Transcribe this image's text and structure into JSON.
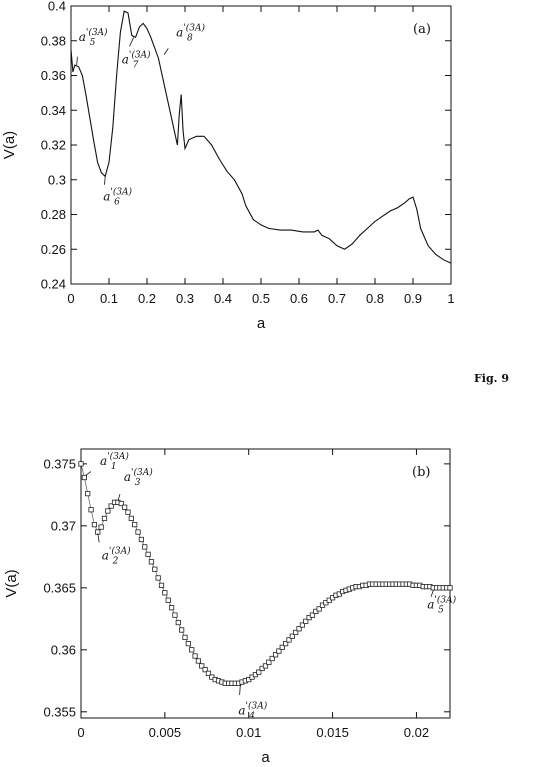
{
  "figure_label": "Fig. 9",
  "chart_data": [
    {
      "type": "line",
      "panel": "(a)",
      "xlabel": "a",
      "ylabel": "V(a)",
      "xlim": [
        0,
        1
      ],
      "ylim": [
        0.24,
        0.4
      ],
      "xticks": [
        0,
        0.1,
        0.2,
        0.3,
        0.4,
        0.5,
        0.6,
        0.7,
        0.8,
        0.9,
        1
      ],
      "xtick_labels": [
        "0",
        "0.1",
        "0.2",
        "0.3",
        "0.4",
        "0.5",
        "0.6",
        "0.7",
        "0.8",
        "0.9",
        "1"
      ],
      "yticks": [
        0.24,
        0.26,
        0.28,
        0.3,
        0.32,
        0.34,
        0.36,
        0.38,
        0.4
      ],
      "ytick_labels": [
        "0.24",
        "0.26",
        "0.28",
        "0.3",
        "0.32",
        "0.34",
        "0.36",
        "0.38",
        "0.4"
      ],
      "grid": false,
      "series": [
        {
          "x": [
            0.0,
            0.005,
            0.01,
            0.02,
            0.03,
            0.04,
            0.05,
            0.06,
            0.07,
            0.08,
            0.09,
            0.1,
            0.11,
            0.12,
            0.13,
            0.14,
            0.15,
            0.16,
            0.17,
            0.18,
            0.19,
            0.2,
            0.21,
            0.22,
            0.23,
            0.24,
            0.25,
            0.26,
            0.27,
            0.28,
            0.285,
            0.29,
            0.295,
            0.3,
            0.31,
            0.33,
            0.35,
            0.37,
            0.39,
            0.41,
            0.43,
            0.45,
            0.46,
            0.48,
            0.5,
            0.52,
            0.55,
            0.58,
            0.61,
            0.64,
            0.65,
            0.66,
            0.68,
            0.7,
            0.72,
            0.74,
            0.76,
            0.78,
            0.8,
            0.82,
            0.84,
            0.86,
            0.88,
            0.89,
            0.9,
            0.91,
            0.92,
            0.94,
            0.96,
            0.98,
            1.0
          ],
          "y": [
            0.375,
            0.362,
            0.366,
            0.365,
            0.36,
            0.348,
            0.335,
            0.322,
            0.31,
            0.304,
            0.302,
            0.31,
            0.33,
            0.36,
            0.385,
            0.397,
            0.396,
            0.383,
            0.382,
            0.388,
            0.39,
            0.387,
            0.382,
            0.376,
            0.37,
            0.36,
            0.35,
            0.34,
            0.33,
            0.32,
            0.338,
            0.349,
            0.328,
            0.318,
            0.323,
            0.325,
            0.325,
            0.32,
            0.312,
            0.305,
            0.3,
            0.292,
            0.285,
            0.277,
            0.274,
            0.272,
            0.271,
            0.271,
            0.27,
            0.27,
            0.271,
            0.268,
            0.266,
            0.262,
            0.26,
            0.263,
            0.268,
            0.272,
            0.276,
            0.279,
            0.282,
            0.284,
            0.287,
            0.289,
            0.29,
            0.283,
            0.272,
            0.262,
            0.257,
            0.254,
            0.252
          ]
        }
      ],
      "annotations": [
        {
          "base": "a",
          "sub": "5",
          "sup": "'(3A)",
          "x": 0.015,
          "y": 0.366
        },
        {
          "base": "a",
          "sub": "6",
          "sup": "'(3A)",
          "x": 0.09,
          "y": 0.302
        },
        {
          "base": "a",
          "sub": "7",
          "sup": "'(3A)",
          "x": 0.165,
          "y": 0.382
        },
        {
          "base": "a",
          "sub": "8",
          "sup": "'(3A)",
          "x": 0.245,
          "y": 0.372
        }
      ]
    },
    {
      "type": "scatter",
      "panel": "(b)",
      "xlabel": "a",
      "ylabel": "V(a)",
      "xlim": [
        0,
        0.022
      ],
      "ylim": [
        0.3545,
        0.3762
      ],
      "xticks": [
        0,
        0.005,
        0.01,
        0.015,
        0.02
      ],
      "xtick_labels": [
        "0",
        "0.005",
        "0.01",
        "0.015",
        "0.02"
      ],
      "yticks": [
        0.355,
        0.36,
        0.365,
        0.37,
        0.375
      ],
      "ytick_labels": [
        "0.355",
        "0.36",
        "0.365",
        "0.37",
        "0.375"
      ],
      "grid": false,
      "marker": "square",
      "series": [
        {
          "x": [
            0.0,
            0.0002,
            0.0004,
            0.0006,
            0.0008,
            0.001,
            0.0012,
            0.0014,
            0.0016,
            0.0018,
            0.002,
            0.0022,
            0.0024,
            0.0026,
            0.0028,
            0.003,
            0.0032,
            0.0034,
            0.0036,
            0.0038,
            0.004,
            0.0042,
            0.0044,
            0.0046,
            0.0048,
            0.005,
            0.0052,
            0.0054,
            0.0056,
            0.0058,
            0.006,
            0.0062,
            0.0064,
            0.0066,
            0.0068,
            0.007,
            0.0072,
            0.0074,
            0.0076,
            0.0078,
            0.008,
            0.0082,
            0.0084,
            0.0086,
            0.0088,
            0.009,
            0.0092,
            0.0094,
            0.0096,
            0.0098,
            0.01,
            0.0102,
            0.0104,
            0.0106,
            0.0108,
            0.011,
            0.0112,
            0.0114,
            0.0116,
            0.0118,
            0.012,
            0.0122,
            0.0124,
            0.0126,
            0.0128,
            0.013,
            0.0132,
            0.0134,
            0.0136,
            0.0138,
            0.014,
            0.0142,
            0.0144,
            0.0146,
            0.0148,
            0.015,
            0.0152,
            0.0154,
            0.0156,
            0.0158,
            0.016,
            0.0162,
            0.0164,
            0.0166,
            0.0168,
            0.017,
            0.0172,
            0.0174,
            0.0176,
            0.0178,
            0.018,
            0.0182,
            0.0184,
            0.0186,
            0.0188,
            0.019,
            0.0192,
            0.0194,
            0.0196,
            0.0198,
            0.02,
            0.0202,
            0.0204,
            0.0206,
            0.0208,
            0.021,
            0.0212,
            0.0214,
            0.0216,
            0.0218,
            0.022
          ],
          "y": [
            0.375,
            0.3739,
            0.3726,
            0.3713,
            0.3701,
            0.3695,
            0.3699,
            0.3706,
            0.3712,
            0.3716,
            0.3719,
            0.3719,
            0.3718,
            0.3715,
            0.3711,
            0.3706,
            0.3701,
            0.3695,
            0.3689,
            0.3683,
            0.3677,
            0.3671,
            0.3665,
            0.3658,
            0.3652,
            0.3646,
            0.364,
            0.3634,
            0.3628,
            0.3622,
            0.3616,
            0.361,
            0.3605,
            0.36,
            0.3595,
            0.3591,
            0.3587,
            0.3584,
            0.3581,
            0.3578,
            0.3576,
            0.3575,
            0.3574,
            0.3573,
            0.3573,
            0.3573,
            0.3573,
            0.3573,
            0.3574,
            0.3575,
            0.3576,
            0.3578,
            0.358,
            0.3582,
            0.3585,
            0.3587,
            0.359,
            0.3593,
            0.3596,
            0.3599,
            0.3602,
            0.3605,
            0.3608,
            0.3611,
            0.3614,
            0.3617,
            0.362,
            0.3623,
            0.3626,
            0.3628,
            0.3631,
            0.3633,
            0.3636,
            0.3638,
            0.364,
            0.3642,
            0.3644,
            0.3645,
            0.3647,
            0.3648,
            0.3649,
            0.365,
            0.3651,
            0.3651,
            0.3652,
            0.3652,
            0.3653,
            0.3653,
            0.3653,
            0.3653,
            0.3653,
            0.3653,
            0.3653,
            0.3653,
            0.3653,
            0.3653,
            0.3653,
            0.3653,
            0.3653,
            0.3652,
            0.3652,
            0.3652,
            0.3651,
            0.3651,
            0.3651,
            0.365,
            0.365,
            0.365,
            0.365,
            0.365,
            0.365
          ]
        }
      ],
      "annotations": [
        {
          "base": "a",
          "sub": "1",
          "sup": "'(3A)",
          "x": 0.0003,
          "y": 0.3741
        },
        {
          "base": "a",
          "sub": "2",
          "sup": "'(3A)",
          "x": 0.001,
          "y": 0.3694
        },
        {
          "base": "a",
          "sub": "3",
          "sup": "'(3A)",
          "x": 0.0022,
          "y": 0.372
        },
        {
          "base": "a",
          "sub": "4",
          "sup": "'(3A)",
          "x": 0.0095,
          "y": 0.3572
        },
        {
          "base": "a",
          "sub": "5",
          "sup": "'(3A)",
          "x": 0.021,
          "y": 0.3648
        }
      ]
    }
  ]
}
